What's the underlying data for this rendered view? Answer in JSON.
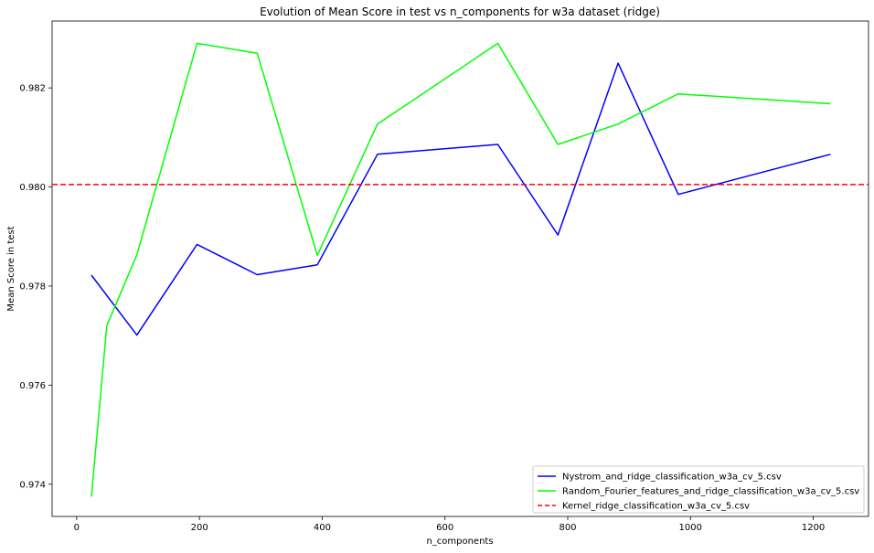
{
  "chart_data": {
    "type": "line",
    "title": "Evolution of Mean Score in test vs n_components for w3a dataset (ridge)",
    "xlabel": "n_components",
    "ylabel": "Mean Score in test",
    "xlim": [
      -40,
      1290
    ],
    "ylim": [
      0.97335,
      0.98335
    ],
    "xticks": [
      0,
      200,
      400,
      600,
      800,
      1000,
      1200
    ],
    "yticks": [
      0.974,
      0.976,
      0.978,
      0.98,
      0.982
    ],
    "ytick_labels": [
      "0.974",
      "0.976",
      "0.978",
      "0.980",
      "0.982"
    ],
    "grid": false,
    "legend_position": "lower-right",
    "series": [
      {
        "name": "Nystrom_and_ridge_classification_w3a_cv_5.csv",
        "color": "#0000ff",
        "style": "solid",
        "x": [
          24,
          98,
          196,
          294,
          392,
          490,
          686,
          784,
          882,
          980,
          1228
        ],
        "y": [
          0.97822,
          0.97701,
          0.97884,
          0.97823,
          0.97843,
          0.98066,
          0.98086,
          0.97903,
          0.9825,
          0.97985,
          0.98066
        ]
      },
      {
        "name": "Random_Fourier_features_and_ridge_classification_w3a_cv_5.csv",
        "color": "#00ff00",
        "style": "solid",
        "x": [
          24,
          49,
          98,
          196,
          294,
          392,
          490,
          686,
          784,
          882,
          980,
          1228
        ],
        "y": [
          0.97375,
          0.9772,
          0.97863,
          0.9829,
          0.9827,
          0.97862,
          0.98127,
          0.9829,
          0.98086,
          0.98127,
          0.98188,
          0.98168
        ]
      },
      {
        "name": "Kernel_ridge_classification_w3a_cv_5.csv",
        "color": "#ff0000",
        "style": "dashed",
        "hline": 0.98005
      }
    ]
  }
}
